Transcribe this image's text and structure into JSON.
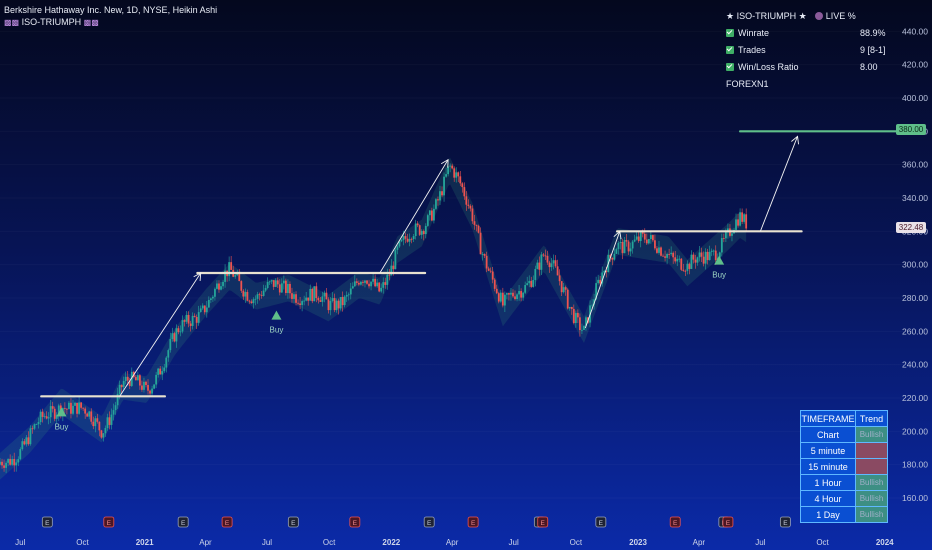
{
  "header": {
    "title": "Berkshire Hathaway Inc. New, 1D, NYSE, Heikin Ashi",
    "indicator": "ISO-TRIUMPH"
  },
  "stats": {
    "title": "ISO-TRIUMPH",
    "live": "LIVE %",
    "rows": [
      {
        "label": "Winrate",
        "value": "88.9%"
      },
      {
        "label": "Trades",
        "value": "9 [8-1]"
      },
      {
        "label": "Win/Loss Ratio",
        "value": "8.00"
      }
    ],
    "footer": "FOREXN1"
  },
  "timeframe_table": {
    "headers": [
      "TIMEFRAME",
      "Trend"
    ],
    "rows": [
      {
        "tf": "Chart",
        "trend": "Bullish",
        "state": "bull"
      },
      {
        "tf": "5 minute",
        "trend": "",
        "state": "bear"
      },
      {
        "tf": "15 minute",
        "trend": "",
        "state": "bear"
      },
      {
        "tf": "1 Hour",
        "trend": "Bullish",
        "state": "bull"
      },
      {
        "tf": "4 Hour",
        "trend": "Bullish",
        "state": "bull"
      },
      {
        "tf": "1 Day",
        "trend": "Bullish",
        "state": "bull"
      }
    ]
  },
  "price_labels": {
    "target": "380.00",
    "last": "322.48"
  },
  "colors": {
    "up": "#26a69a",
    "down": "#ef5350",
    "buy": "#5fbf8a",
    "level": "#e8e2d0",
    "target": "#5fbf8a"
  },
  "chart_data": {
    "type": "line",
    "title": "Berkshire Hathaway Inc. New, 1D, NYSE, Heikin Ashi",
    "x_ticks": [
      "Jul",
      "Oct",
      "2021",
      "Apr",
      "Jul",
      "Oct",
      "2022",
      "Apr",
      "Jul",
      "Oct",
      "2023",
      "Apr",
      "Jul",
      "Oct",
      "2024"
    ],
    "y_ticks": [
      160,
      180,
      200,
      220,
      240,
      260,
      280,
      300,
      320,
      340,
      360,
      380,
      400,
      420,
      440
    ],
    "ylim": [
      148,
      448
    ],
    "price_path": [
      {
        "date": "2020-06-01",
        "value": 180
      },
      {
        "date": "2020-07-15",
        "value": 196
      },
      {
        "date": "2020-08-31",
        "value": 219
      },
      {
        "date": "2020-10-30",
        "value": 202
      },
      {
        "date": "2020-11-30",
        "value": 228
      },
      {
        "date": "2021-01-04",
        "value": 226
      },
      {
        "date": "2021-02-15",
        "value": 255
      },
      {
        "date": "2021-04-01",
        "value": 278
      },
      {
        "date": "2021-05-07",
        "value": 294
      },
      {
        "date": "2021-06-15",
        "value": 282
      },
      {
        "date": "2021-08-02",
        "value": 287
      },
      {
        "date": "2021-09-30",
        "value": 275
      },
      {
        "date": "2021-11-15",
        "value": 289
      },
      {
        "date": "2021-12-15",
        "value": 285
      },
      {
        "date": "2022-01-10",
        "value": 310
      },
      {
        "date": "2022-02-15",
        "value": 320
      },
      {
        "date": "2022-03-28",
        "value": 358
      },
      {
        "date": "2022-05-01",
        "value": 330
      },
      {
        "date": "2022-06-15",
        "value": 272
      },
      {
        "date": "2022-08-15",
        "value": 305
      },
      {
        "date": "2022-10-13",
        "value": 262
      },
      {
        "date": "2022-12-01",
        "value": 315
      },
      {
        "date": "2023-02-15",
        "value": 310
      },
      {
        "date": "2023-03-15",
        "value": 296
      },
      {
        "date": "2023-05-15",
        "value": 318
      },
      {
        "date": "2023-06-01",
        "value": 325
      },
      {
        "date": "2023-06-10",
        "value": 322.48
      }
    ],
    "levels": [
      {
        "from": "2020-08-01",
        "to": "2021-01-31",
        "value": 221
      },
      {
        "from": "2021-03-20",
        "to": "2022-02-20",
        "value": 295
      },
      {
        "from": "2022-12-01",
        "to": "2023-08-31",
        "value": 320
      },
      {
        "from": "2023-06-01",
        "to": "2024-01-31",
        "value": 380
      }
    ],
    "arrows": [
      {
        "from_date": "2020-11-25",
        "from_value": 221,
        "to_date": "2021-03-25",
        "to_value": 295
      },
      {
        "from_date": "2021-12-15",
        "from_value": 295,
        "to_date": "2022-03-26",
        "to_value": 363
      },
      {
        "from_date": "2022-10-15",
        "from_value": 262,
        "to_date": "2022-12-05",
        "to_value": 320
      },
      {
        "from_date": "2023-07-01",
        "from_value": 320,
        "to_date": "2023-08-25",
        "to_value": 377
      }
    ],
    "buy_signals": [
      {
        "date": "2020-08-31",
        "value": 218,
        "label": "Buy"
      },
      {
        "date": "2021-07-15",
        "value": 276,
        "label": "Buy"
      },
      {
        "date": "2023-05-01",
        "value": 309,
        "label": "Buy"
      }
    ],
    "earnings_dates": [
      "2020-08-10",
      "2020-11-09",
      "2021-02-27",
      "2021-05-03",
      "2021-08-09",
      "2021-11-08",
      "2022-02-26",
      "2022-05-02",
      "2022-08-08",
      "2022-08-13",
      "2022-11-07",
      "2023-02-25",
      "2023-05-08",
      "2023-05-14",
      "2023-08-07"
    ]
  }
}
